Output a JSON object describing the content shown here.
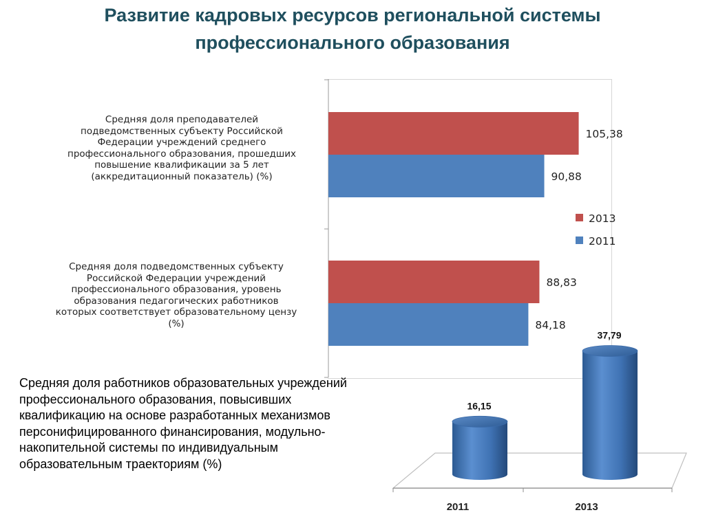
{
  "title": {
    "lines": [
      "Развитие кадровых ресурсов региональной системы",
      "профессионального образования"
    ]
  },
  "bar_chart": {
    "categories": [
      {
        "label_lines": [
          "Средняя доля преподавателей",
          "подведомственных субъекту  Российской",
          "Федерации учреждений среднего",
          "профессионального образования, прошедших",
          "повышение квалификации за 5 лет",
          "(аккредитационный показатель) (%)"
        ]
      },
      {
        "label_lines": [
          "Средняя доля  подведомственных субъекту",
          "Российской Федерации учреждений",
          "профессионального образования, уровень",
          "образования педагогических работников",
          "которых соответствует образовательному цензу",
          "(%)"
        ]
      }
    ],
    "legend": [
      "2013",
      "2011"
    ],
    "colors": {
      "2013": "#c0504d",
      "2011": "#4f81bd"
    }
  },
  "cylinder_chart": {
    "description_lines": [
      "Средняя доля  работников образовательных учреждений",
      "профессионального образования, повысивших",
      "квалификацию  на основе разработанных механизмов",
      "персонифицированного финансирования, модульно-",
      "накопительной системы  по индивидуальным",
      "образовательным траекториям (%)"
    ],
    "color": "#4f81bd"
  },
  "chart_data": [
    {
      "type": "bar",
      "orientation": "horizontal",
      "categories": [
        "Средняя доля преподавателей подведомственных субъекту  Российской Федерации учреждений среднего профессионального образования, прошедших повышение квалификации за 5 лет (аккредитационный показатель) (%)",
        "Средняя доля  подведомственных субъекту Российской Федерации учреждений профессионального образования, уровень образования педагогических работников которых соответствует образовательному цензу (%)"
      ],
      "series": [
        {
          "name": "2013",
          "values": [
            105.38,
            88.83
          ],
          "labels": [
            "105,38",
            "88,83"
          ]
        },
        {
          "name": "2011",
          "values": [
            90.88,
            84.18
          ],
          "labels": [
            "90,88",
            "84,18"
          ]
        }
      ],
      "xlim": [
        0,
        120
      ],
      "legend": "right",
      "grid": false
    },
    {
      "type": "bar",
      "style": "3d-cylinder",
      "categories": [
        "2011",
        "2013"
      ],
      "values": [
        16.15,
        37.79
      ],
      "labels": [
        "16,15",
        "37,79"
      ],
      "ylim": [
        0,
        40
      ],
      "grid": false
    }
  ]
}
